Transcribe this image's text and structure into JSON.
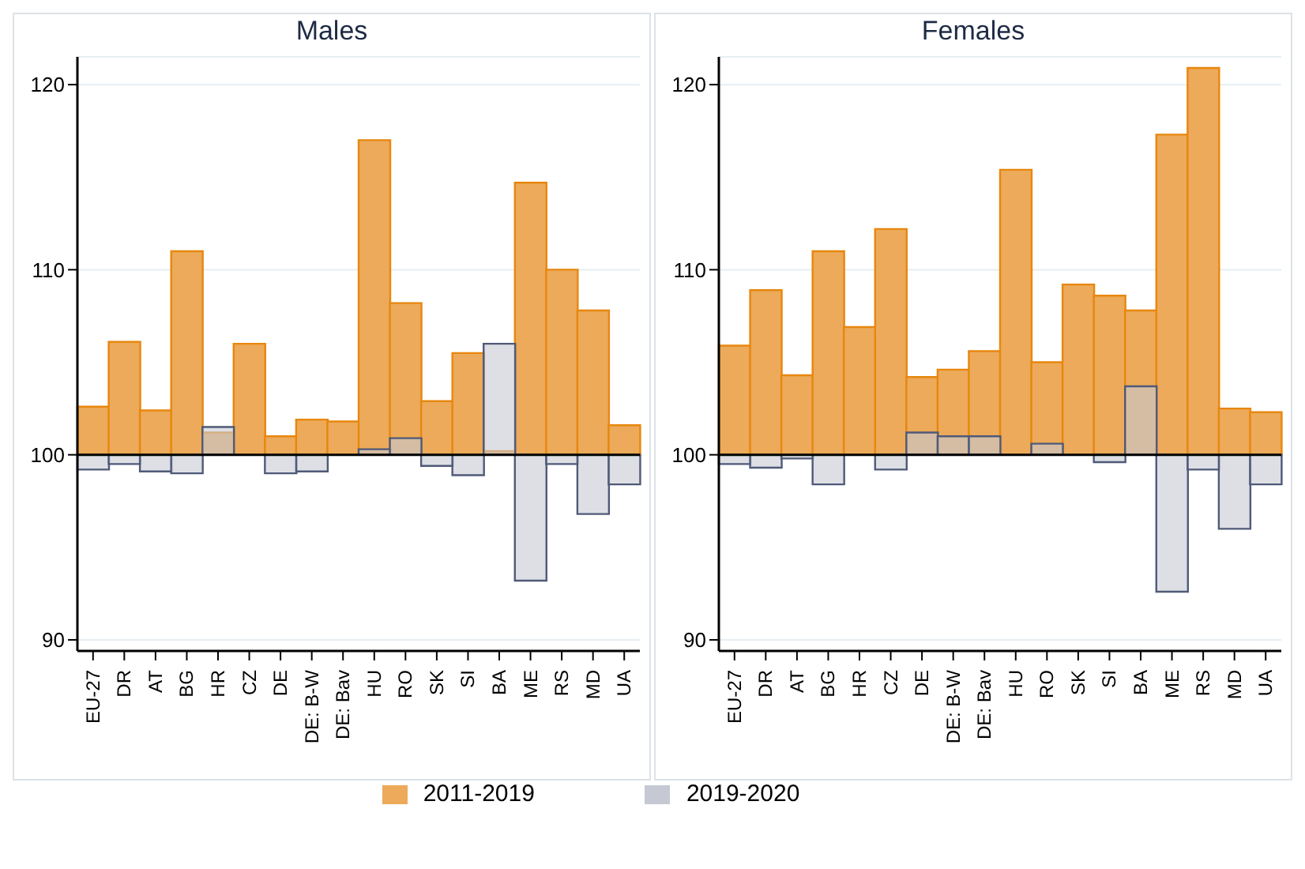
{
  "chart_data": [
    {
      "type": "bar",
      "title": "Males",
      "categories": [
        "EU-27",
        "DR",
        "AT",
        "BG",
        "HR",
        "CZ",
        "DE",
        "DE: B-W",
        "DE: Bav",
        "HU",
        "RO",
        "SK",
        "SI",
        "BA",
        "ME",
        "RS",
        "MD",
        "UA"
      ],
      "series": [
        {
          "name": "2011-2019",
          "color": "#ecaa5a",
          "base": [
            100,
            100,
            100,
            100,
            100,
            100,
            100,
            100,
            100,
            100,
            100,
            100,
            100,
            100,
            100,
            100,
            100,
            100
          ],
          "values": [
            2.6,
            6.1,
            2.4,
            11.0,
            1.2,
            6.0,
            1.0,
            1.9,
            1.8,
            17.0,
            8.2,
            2.9,
            5.5,
            0.2,
            14.7,
            10.0,
            7.8,
            1.6
          ]
        },
        {
          "name": "2019-2020",
          "color": "#c6c9d3",
          "base": [
            100,
            100,
            100,
            100,
            100,
            null,
            100,
            100,
            null,
            100,
            100,
            100,
            100,
            100,
            100,
            100,
            100,
            100
          ],
          "values": [
            -0.8,
            -0.5,
            -0.9,
            -1.0,
            1.5,
            null,
            -1.0,
            -0.9,
            null,
            0.3,
            0.9,
            -0.6,
            -1.1,
            6.0,
            -6.8,
            -0.5,
            -3.2,
            -1.6
          ]
        }
      ],
      "ylim": [
        89.4,
        121.5
      ],
      "yticks": [
        90,
        100,
        110,
        120
      ],
      "grid": "y",
      "legend": "bottom",
      "ref_lines": [
        {
          "axis": "y",
          "value": 100,
          "color": "#000000"
        }
      ]
    },
    {
      "type": "bar",
      "title": "Females",
      "categories": [
        "EU-27",
        "DR",
        "AT",
        "BG",
        "HR",
        "CZ",
        "DE",
        "DE: B-W",
        "DE: Bav",
        "HU",
        "RO",
        "SK",
        "SI",
        "BA",
        "ME",
        "RS",
        "MD",
        "UA"
      ],
      "series": [
        {
          "color": "#ecaa5a",
          "base": [
            100,
            100,
            100,
            100,
            100,
            100,
            100,
            100,
            100,
            100,
            100,
            100,
            100,
            100,
            100,
            100,
            100,
            100
          ],
          "values": [
            5.9,
            8.9,
            4.3,
            11.0,
            6.9,
            12.2,
            4.2,
            4.6,
            5.6,
            15.4,
            5.0,
            9.2,
            8.6,
            7.8,
            17.3,
            20.9,
            2.5,
            2.3
          ]
        },
        {
          "color": "#c6c9d3",
          "base": [
            100,
            100,
            100,
            100,
            null,
            100,
            100,
            100,
            100,
            null,
            100,
            null,
            100,
            100,
            100,
            100,
            100,
            100
          ],
          "values": [
            -0.5,
            -0.7,
            -0.2,
            -1.6,
            null,
            -0.8,
            1.2,
            1.0,
            1.0,
            null,
            0.6,
            null,
            -0.4,
            3.7,
            -7.4,
            -0.8,
            -4.0,
            -1.6
          ]
        }
      ],
      "ylim": [
        89.4,
        121.5
      ],
      "yticks": [
        90,
        100,
        110,
        120
      ],
      "grid": "y",
      "ref_lines": [
        {
          "axis": "y",
          "value": 100,
          "color": "#000000"
        }
      ]
    }
  ]
}
